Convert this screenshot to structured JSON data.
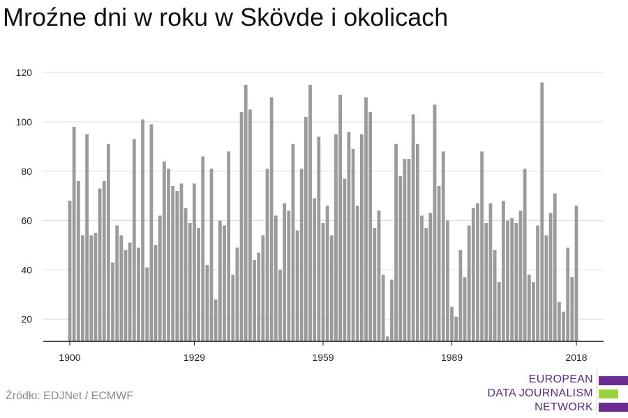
{
  "title": "Mroźne dni w roku w Skövde i okolicach",
  "source": "Źródło: EDJNet / ECMWF",
  "logo": {
    "lines": [
      "EUROPEAN",
      "DATA JOURNALISM",
      "NETWORK"
    ],
    "colors": {
      "purple": "#6b2c91",
      "green": "#9bd33c",
      "text": "#5a2a82"
    }
  },
  "colors": {
    "bar": "#9b9b9b",
    "grid": "#dddddd",
    "axis": "#111111",
    "tick_text": "#222222"
  },
  "chart_data": {
    "type": "bar",
    "title": "",
    "xlabel": "",
    "ylabel": "",
    "x_start": 1900,
    "x_end": 2018,
    "x_ticks": [
      1900,
      1929,
      1959,
      1989,
      2018
    ],
    "y_ticks": [
      20,
      40,
      60,
      80,
      100,
      120
    ],
    "ylim": [
      11,
      124
    ],
    "grid": true,
    "categories": [
      1900,
      1901,
      1902,
      1903,
      1904,
      1905,
      1906,
      1907,
      1908,
      1909,
      1910,
      1911,
      1912,
      1913,
      1914,
      1915,
      1916,
      1917,
      1918,
      1919,
      1920,
      1921,
      1922,
      1923,
      1924,
      1925,
      1926,
      1927,
      1928,
      1929,
      1930,
      1931,
      1932,
      1933,
      1934,
      1935,
      1936,
      1937,
      1938,
      1939,
      1940,
      1941,
      1942,
      1943,
      1944,
      1945,
      1946,
      1947,
      1948,
      1949,
      1950,
      1951,
      1952,
      1953,
      1954,
      1955,
      1956,
      1957,
      1958,
      1959,
      1960,
      1961,
      1962,
      1963,
      1964,
      1965,
      1966,
      1967,
      1968,
      1969,
      1970,
      1971,
      1972,
      1973,
      1974,
      1975,
      1976,
      1977,
      1978,
      1979,
      1980,
      1981,
      1982,
      1983,
      1984,
      1985,
      1986,
      1987,
      1988,
      1989,
      1990,
      1991,
      1992,
      1993,
      1994,
      1995,
      1996,
      1997,
      1998,
      1999,
      2000,
      2001,
      2002,
      2003,
      2004,
      2005,
      2006,
      2007,
      2008,
      2009,
      2010,
      2011,
      2012,
      2013,
      2014,
      2015,
      2016,
      2017,
      2018
    ],
    "values": [
      68,
      98,
      76,
      54,
      95,
      54,
      55,
      73,
      76,
      91,
      43,
      58,
      54,
      48,
      51,
      93,
      49,
      101,
      41,
      99,
      50,
      62,
      84,
      81,
      74,
      72,
      75,
      65,
      59,
      75,
      57,
      86,
      42,
      81,
      28,
      60,
      58,
      88,
      38,
      49,
      104,
      115,
      105,
      44,
      47,
      54,
      81,
      110,
      62,
      40,
      67,
      64,
      91,
      56,
      81,
      102,
      115,
      69,
      94,
      59,
      66,
      54,
      95,
      111,
      77,
      96,
      89,
      66,
      95,
      110,
      104,
      57,
      64,
      38,
      13,
      36,
      91,
      78,
      85,
      85,
      103,
      91,
      62,
      57,
      63,
      107,
      74,
      88,
      60,
      25,
      21,
      48,
      37,
      58,
      65,
      67,
      88,
      59,
      67,
      48,
      35,
      68,
      60,
      61,
      59,
      64,
      81,
      38,
      35,
      58,
      116,
      54,
      63,
      71,
      27,
      23,
      49,
      37,
      66
    ]
  }
}
